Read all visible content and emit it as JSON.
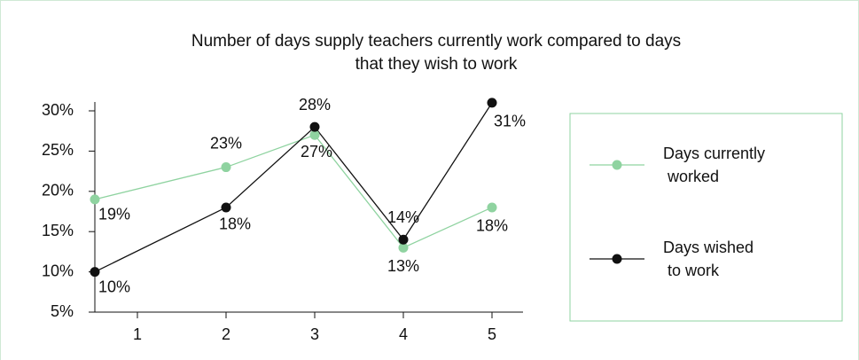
{
  "chart_data": {
    "type": "line",
    "title": "Number of days supply teachers currently work compared to days",
    "subtitle": "that they wish to work",
    "x": [
      0.52,
      2,
      3,
      4,
      5
    ],
    "xlim": [
      0.52,
      5.35
    ],
    "xticks": [
      1,
      2,
      3,
      4,
      5
    ],
    "ylim": [
      5,
      30
    ],
    "yticks": [
      {
        "value": 5,
        "label": "5%"
      },
      {
        "value": 10,
        "label": "10%"
      },
      {
        "value": 15,
        "label": "15%"
      },
      {
        "value": 20,
        "label": "20%"
      },
      {
        "value": 25,
        "label": "25%"
      },
      {
        "value": 30,
        "label": "30%"
      }
    ],
    "series": [
      {
        "name": "Days currently worked",
        "color": "#8fd3a0",
        "values": [
          19,
          23,
          27,
          13,
          18
        ],
        "value_labels": [
          "19%",
          "23%",
          "27%",
          "13%",
          "18%"
        ]
      },
      {
        "name": "Days wished to work",
        "color": "#111111",
        "values": [
          10,
          18,
          28,
          14,
          31
        ],
        "value_labels": [
          "10%",
          "18%",
          "28%",
          "14%",
          "31%"
        ]
      }
    ],
    "legend": "right"
  }
}
